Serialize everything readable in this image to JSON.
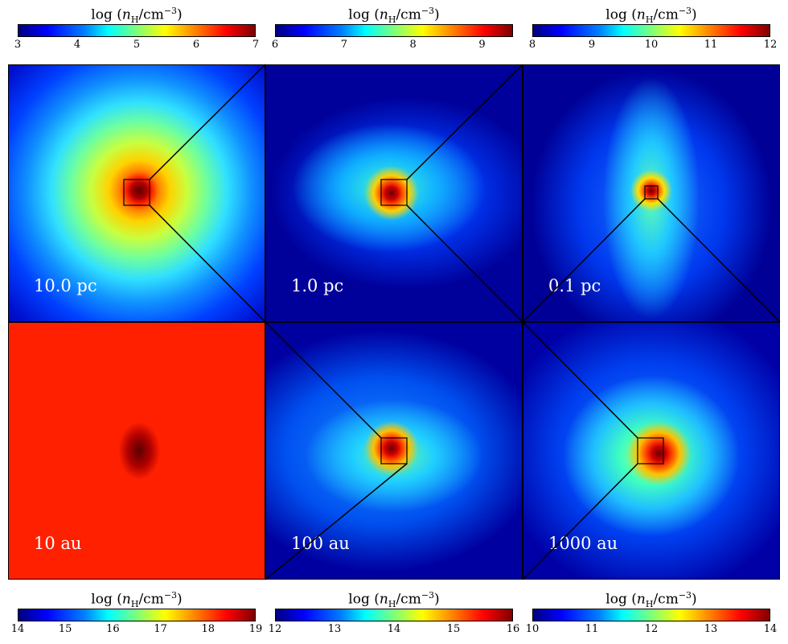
{
  "colorbars": [
    {
      "title_prefix": "log",
      "n_symbol": "n",
      "n_sub": "H",
      "unit": "/cm",
      "exponent": "−3",
      "ticks": [
        "3",
        "4",
        "5",
        "6",
        "7"
      ]
    },
    {
      "title_prefix": "log",
      "n_symbol": "n",
      "n_sub": "H",
      "unit": "/cm",
      "exponent": "−3",
      "ticks": [
        "6",
        "7",
        "8",
        "9"
      ]
    },
    {
      "title_prefix": "log",
      "n_symbol": "n",
      "n_sub": "H",
      "unit": "/cm",
      "exponent": "−3",
      "ticks": [
        "8",
        "9",
        "10",
        "11",
        "12"
      ]
    },
    {
      "title_prefix": "log",
      "n_symbol": "n",
      "n_sub": "H",
      "unit": "/cm",
      "exponent": "−3",
      "ticks": [
        "14",
        "15",
        "16",
        "17",
        "18",
        "19"
      ]
    },
    {
      "title_prefix": "log",
      "n_symbol": "n",
      "n_sub": "H",
      "unit": "/cm",
      "exponent": "−3",
      "ticks": [
        "12",
        "13",
        "14",
        "15",
        "16"
      ]
    },
    {
      "title_prefix": "log",
      "n_symbol": "n",
      "n_sub": "H",
      "unit": "/cm",
      "exponent": "−3",
      "ticks": [
        "10",
        "11",
        "12",
        "13",
        "14"
      ]
    }
  ],
  "panels": [
    {
      "scale_label": "10.0 pc"
    },
    {
      "scale_label": "1.0 pc"
    },
    {
      "scale_label": "0.1 pc"
    },
    {
      "scale_label": "10 au"
    },
    {
      "scale_label": "100 au"
    },
    {
      "scale_label": "1000 au"
    }
  ]
}
